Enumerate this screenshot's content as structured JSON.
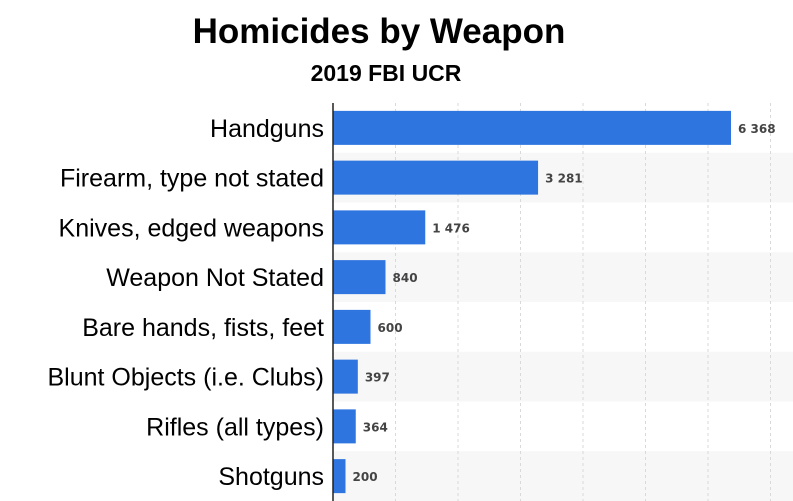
{
  "chart_data": {
    "type": "bar",
    "orientation": "horizontal",
    "title": "Homicides by Weapon",
    "subtitle": "2019 FBI UCR",
    "categories": [
      "Handguns",
      "Firearm, type not stated",
      "Knives, edged weapons",
      "Weapon Not Stated",
      "Bare hands, fists, feet",
      "Blunt Objects (i.e. Clubs)",
      "Rifles (all types)",
      "Shotguns"
    ],
    "values": [
      6368,
      3281,
      1476,
      840,
      600,
      397,
      364,
      200
    ],
    "value_labels": [
      "6 368",
      "3 281",
      "1 476",
      "840",
      "600",
      "397",
      "364",
      "200"
    ],
    "xlim": [
      0,
      7000
    ],
    "grid": true,
    "bar_color": "#2f75e0"
  }
}
